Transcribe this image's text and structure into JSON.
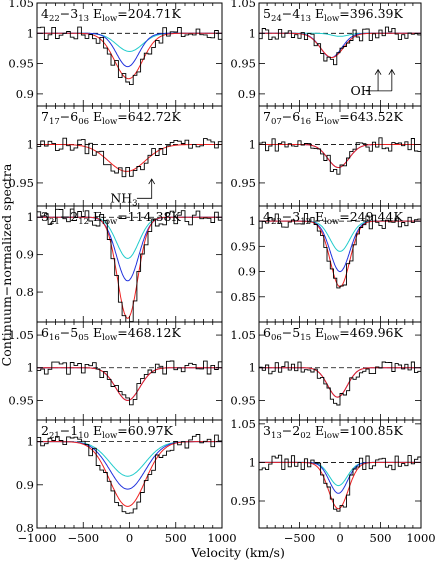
{
  "chart_data": {
    "type": "line",
    "ylabel": "Continuum−normalized spectra",
    "xlabel": "Velocity (km/s)",
    "xlim": [
      -1000,
      1000
    ],
    "xticks": [
      "−1000",
      "−500",
      "0",
      "500",
      "1000"
    ],
    "series_colors": {
      "spectrum": "#000000",
      "total_model": "#ee2222",
      "component_blue": "#2233dd",
      "component_cyan": "#22cccc",
      "continuum": "#000000",
      "continuum_dashed": "#22cccc",
      "component_purple": "#9933aa"
    },
    "panels": [
      {
        "trans": "4",
        "ta": "22",
        "tb": "13",
        "sep": "−",
        "trans2": "3",
        "elow_text": "E",
        "elow_sub": "low",
        "elow_val": "=204.71K",
        "ylim": [
          0.88,
          1.05
        ],
        "yticks": [
          "1.05",
          "1",
          "0.95",
          "0.9"
        ],
        "models": {
          "red": {
            "depth": 0.075,
            "center": -10,
            "sigma": 150
          },
          "blue": {
            "depth": 0.055,
            "center": -20,
            "sigma": 120
          },
          "cyan": {
            "depth": 0.03,
            "center": 0,
            "sigma": 140
          }
        }
      },
      {
        "trans": "5",
        "ta": "24",
        "tb": "13",
        "sep": "−",
        "trans2": "4",
        "elow_text": "E",
        "elow_sub": "low",
        "elow_val": "=396.39K",
        "ylim": [
          0.88,
          1.05
        ],
        "yticks": [
          "1.05",
          "1",
          "0.95",
          "0.9"
        ],
        "annotation": "OH",
        "models": {
          "red": {
            "depth": 0.04,
            "center": -100,
            "sigma": 140
          },
          "blue": {
            "depth": 0.04,
            "center": -110,
            "sigma": 130
          },
          "cyan": {
            "depth": 0.005,
            "center": 0,
            "sigma": 100
          }
        }
      },
      {
        "trans": "7",
        "ta": "17",
        "tb": "06",
        "sep": "−",
        "trans2": "6",
        "elow_text": "E",
        "elow_sub": "low",
        "elow_val": "=642.72K",
        "ylim": [
          0.92,
          1.05
        ],
        "yticks": [
          "1",
          "0.95"
        ],
        "annotation": "NH",
        "annotation_sub": "3",
        "models": {
          "red": {
            "depth": 0.035,
            "center": -30,
            "sigma": 200
          },
          "blue": {
            "depth": 0.0,
            "center": 0,
            "sigma": 100
          },
          "cyan": {
            "depth": 0.0,
            "center": 0,
            "sigma": 100
          }
        }
      },
      {
        "trans": "7",
        "ta": "07",
        "tb": "16",
        "sep": "−",
        "trans2": "6",
        "elow_text": "E",
        "elow_sub": "low",
        "elow_val": "=643.52K",
        "ylim": [
          0.92,
          1.05
        ],
        "yticks": [
          "1",
          "0.95"
        ],
        "models": {
          "red": {
            "depth": 0.03,
            "center": -20,
            "sigma": 130
          },
          "blue": {
            "depth": 0.03,
            "center": -20,
            "sigma": 130
          },
          "cyan": {
            "depth": 0.0,
            "center": 0,
            "sigma": 100
          }
        }
      },
      {
        "trans": "3",
        "ta": "21",
        "tb": "12",
        "sep": "−",
        "trans2": "2",
        "elow_text": "E",
        "elow_sub": "low",
        "elow_val": "=114.38K",
        "ylim": [
          0.72,
          1.03
        ],
        "yticks": [
          "1",
          "0.9",
          "0.8"
        ],
        "models": {
          "red": {
            "depth": 0.27,
            "center": -20,
            "sigma": 110
          },
          "blue": {
            "depth": 0.17,
            "center": -20,
            "sigma": 120
          },
          "cyan": {
            "depth": 0.11,
            "center": -20,
            "sigma": 120
          }
        }
      },
      {
        "trans": "4",
        "ta": "23",
        "tb": "12",
        "sep": "−",
        "trans2": "3",
        "elow_text": "E",
        "elow_sub": "low",
        "elow_val": "=249.44K",
        "ylim": [
          0.8,
          1.03
        ],
        "yticks": [
          "1",
          "0.95",
          "0.9",
          "0.85"
        ],
        "models": {
          "red": {
            "depth": 0.13,
            "center": 0,
            "sigma": 120
          },
          "blue": {
            "depth": 0.1,
            "center": 0,
            "sigma": 120
          },
          "cyan": {
            "depth": 0.06,
            "center": 0,
            "sigma": 120
          }
        }
      },
      {
        "trans": "6",
        "ta": "16",
        "tb": "05",
        "sep": "−",
        "trans2": "5",
        "elow_text": "E",
        "elow_sub": "low",
        "elow_val": "=468.12K",
        "ylim": [
          0.92,
          1.07
        ],
        "yticks": [
          "1.05",
          "1",
          "0.95"
        ],
        "models": {
          "red": {
            "depth": 0.05,
            "center": -20,
            "sigma": 130
          },
          "blue": {
            "depth": 0.05,
            "center": -20,
            "sigma": 130
          },
          "cyan": {
            "depth": 0.0,
            "center": 0,
            "sigma": 100
          }
        }
      },
      {
        "trans": "6",
        "ta": "06",
        "tb": "15",
        "sep": "−",
        "trans2": "5",
        "elow_text": "E",
        "elow_sub": "low",
        "elow_val": "=469.96K",
        "ylim": [
          0.92,
          1.07
        ],
        "yticks": [
          "1.05",
          "1",
          "0.95"
        ],
        "models": {
          "red": {
            "depth": 0.045,
            "center": -30,
            "sigma": 120
          },
          "blue": {
            "depth": 0.045,
            "center": -30,
            "sigma": 120
          },
          "cyan": {
            "depth": 0.0,
            "center": 0,
            "sigma": 100
          }
        }
      },
      {
        "trans": "2",
        "ta": "21",
        "tb": "10",
        "sep": "−",
        "trans2": "1",
        "elow_text": "E",
        "elow_sub": "low",
        "elow_val": "=60.97K",
        "ylim": [
          0.8,
          1.05
        ],
        "yticks": [
          "1",
          "0.9",
          "0.8"
        ],
        "models": {
          "red": {
            "depth": 0.15,
            "center": -20,
            "sigma": 190
          },
          "blue": {
            "depth": 0.11,
            "center": -20,
            "sigma": 190
          },
          "cyan": {
            "depth": 0.08,
            "center": -20,
            "sigma": 190
          }
        }
      },
      {
        "trans": "3",
        "ta": "13",
        "tb": "02",
        "sep": "−",
        "trans2": "2",
        "elow_text": "E",
        "elow_sub": "low",
        "elow_val": "=100.85K",
        "ylim": [
          0.915,
          1.055
        ],
        "yticks": [
          "1.05",
          "1",
          "0.95"
        ],
        "models": {
          "red": {
            "depth": 0.06,
            "center": -20,
            "sigma": 120
          },
          "blue": {
            "depth": 0.04,
            "center": -20,
            "sigma": 110
          },
          "cyan": {
            "depth": 0.03,
            "center": -20,
            "sigma": 110
          }
        }
      }
    ]
  }
}
